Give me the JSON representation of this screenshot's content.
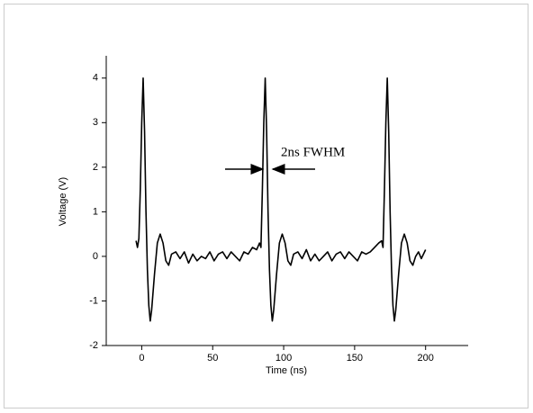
{
  "chart_data": {
    "type": "line",
    "xlabel": "Time (ns)",
    "ylabel": "Voltage (V)",
    "annotation": "2ns FWHM",
    "xlim": [
      -25,
      230
    ],
    "xticks": [
      0,
      50,
      100,
      150,
      200
    ],
    "ylim": [
      -2,
      4.5
    ],
    "yticks": [
      -2,
      -1,
      0,
      1,
      2,
      3,
      4
    ],
    "grid": false,
    "series": [
      {
        "name": "Voltage",
        "color": "#000000",
        "x": [
          -4,
          -3,
          -2,
          -1,
          0,
          1,
          2,
          3,
          4,
          5,
          6,
          7,
          9,
          11,
          13,
          15,
          17,
          19,
          21,
          24,
          27,
          30,
          33,
          36,
          39,
          42,
          45,
          48,
          51,
          54,
          57,
          60,
          63,
          66,
          69,
          72,
          75,
          78,
          81,
          83,
          84,
          85,
          86,
          87,
          88,
          89,
          90,
          91,
          92,
          93,
          95,
          97,
          99,
          101,
          103,
          105,
          107,
          110,
          113,
          116,
          119,
          122,
          125,
          128,
          131,
          134,
          137,
          140,
          143,
          146,
          149,
          152,
          155,
          158,
          161,
          164,
          167,
          169,
          170,
          171,
          172,
          173,
          174,
          175,
          176,
          177,
          178,
          179,
          181,
          183,
          185,
          187,
          189,
          191,
          193,
          195,
          197,
          200
        ],
        "values": [
          0.35,
          0.2,
          0.4,
          1.5,
          3.0,
          4.0,
          2.8,
          1.0,
          -0.3,
          -1.1,
          -1.45,
          -1.2,
          -0.4,
          0.3,
          0.5,
          0.3,
          -0.1,
          -0.2,
          0.05,
          0.1,
          -0.05,
          0.1,
          -0.15,
          0.05,
          -0.1,
          0.0,
          -0.05,
          0.1,
          -0.1,
          0.05,
          0.1,
          -0.05,
          0.1,
          0.0,
          -0.1,
          0.1,
          0.05,
          0.2,
          0.15,
          0.3,
          0.2,
          1.5,
          3.0,
          4.0,
          2.8,
          1.0,
          -0.3,
          -1.1,
          -1.45,
          -1.2,
          -0.4,
          0.3,
          0.5,
          0.3,
          -0.1,
          -0.2,
          0.05,
          0.1,
          -0.05,
          0.15,
          -0.1,
          0.05,
          -0.1,
          0.0,
          0.1,
          -0.1,
          0.05,
          0.1,
          -0.05,
          0.1,
          0.0,
          -0.1,
          0.1,
          0.05,
          0.1,
          0.2,
          0.3,
          0.35,
          0.2,
          1.5,
          3.0,
          4.0,
          2.8,
          1.0,
          -0.3,
          -1.1,
          -1.45,
          -1.2,
          -0.4,
          0.3,
          0.5,
          0.3,
          -0.1,
          -0.2,
          0.0,
          0.1,
          -0.05,
          0.15
        ]
      }
    ]
  }
}
